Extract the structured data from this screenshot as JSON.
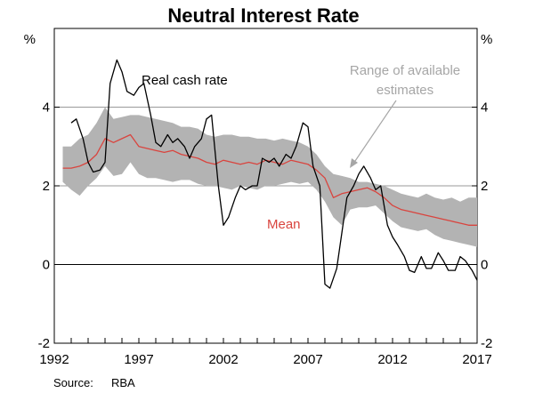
{
  "chart_data": {
    "type": "line",
    "title": "Neutral Interest Rate",
    "xlabel": "",
    "ylabel": "%",
    "ylabel_right": "%",
    "ylim": [
      -2,
      6
    ],
    "xlim": [
      1992,
      2017
    ],
    "y_ticks": [
      -2,
      0,
      2,
      4
    ],
    "x_ticks": [
      1992,
      1997,
      2002,
      2007,
      2012,
      2017
    ],
    "gridlines": [
      2,
      4
    ],
    "zero_line": 0,
    "series": [
      {
        "name": "Real cash rate",
        "color": "#000000",
        "x": [
          1993.0,
          1993.3,
          1993.7,
          1994.0,
          1994.3,
          1994.7,
          1995.0,
          1995.3,
          1995.7,
          1996.0,
          1996.3,
          1996.7,
          1997.0,
          1997.3,
          1997.7,
          1998.0,
          1998.3,
          1998.7,
          1999.0,
          1999.3,
          1999.7,
          2000.0,
          2000.3,
          2000.7,
          2001.0,
          2001.3,
          2001.7,
          2002.0,
          2002.3,
          2002.7,
          2003.0,
          2003.3,
          2003.7,
          2004.0,
          2004.3,
          2004.7,
          2005.0,
          2005.3,
          2005.7,
          2006.0,
          2006.3,
          2006.7,
          2007.0,
          2007.3,
          2007.7,
          2008.0,
          2008.3,
          2008.7,
          2009.0,
          2009.3,
          2009.7,
          2010.0,
          2010.3,
          2010.7,
          2011.0,
          2011.3,
          2011.7,
          2012.0,
          2012.3,
          2012.7,
          2013.0,
          2013.3,
          2013.7,
          2014.0,
          2014.3,
          2014.7,
          2015.0,
          2015.3,
          2015.7,
          2016.0,
          2016.3,
          2016.7,
          2017.0
        ],
        "values": [
          3.6,
          3.7,
          3.2,
          2.6,
          2.35,
          2.4,
          2.6,
          4.6,
          5.2,
          4.9,
          4.4,
          4.3,
          4.5,
          4.6,
          3.8,
          3.1,
          3.0,
          3.3,
          3.1,
          3.2,
          3.0,
          2.7,
          3.0,
          3.2,
          3.7,
          3.8,
          2.0,
          1.0,
          1.2,
          1.7,
          2.0,
          1.9,
          2.0,
          2.0,
          2.7,
          2.6,
          2.7,
          2.5,
          2.8,
          2.7,
          3.0,
          3.6,
          3.5,
          2.5,
          2.0,
          -0.5,
          -0.6,
          -0.1,
          0.8,
          1.7,
          2.0,
          2.3,
          2.5,
          2.2,
          1.9,
          2.0,
          1.0,
          0.7,
          0.5,
          0.2,
          -0.15,
          -0.2,
          0.2,
          -0.1,
          -0.1,
          0.3,
          0.1,
          -0.15,
          -0.15,
          0.2,
          0.1,
          -0.15,
          -0.4
        ]
      },
      {
        "name": "Mean",
        "color": "#d9443e",
        "x": [
          1992.5,
          1993.0,
          1993.5,
          1994.0,
          1994.5,
          1995.0,
          1995.5,
          1996.0,
          1996.5,
          1997.0,
          1997.5,
          1998.0,
          1998.5,
          1999.0,
          1999.5,
          2000.0,
          2000.5,
          2001.0,
          2001.5,
          2002.0,
          2002.5,
          2003.0,
          2003.5,
          2004.0,
          2004.5,
          2005.0,
          2005.5,
          2006.0,
          2006.5,
          2007.0,
          2007.5,
          2008.0,
          2008.5,
          2009.0,
          2009.5,
          2010.0,
          2010.5,
          2011.0,
          2011.5,
          2012.0,
          2012.5,
          2013.0,
          2013.5,
          2014.0,
          2014.5,
          2015.0,
          2015.5,
          2016.0,
          2016.5,
          2017.0
        ],
        "values": [
          2.45,
          2.45,
          2.5,
          2.6,
          2.8,
          3.2,
          3.1,
          3.2,
          3.3,
          3.0,
          2.95,
          2.9,
          2.85,
          2.9,
          2.8,
          2.75,
          2.7,
          2.6,
          2.55,
          2.65,
          2.6,
          2.55,
          2.6,
          2.55,
          2.65,
          2.6,
          2.55,
          2.65,
          2.6,
          2.55,
          2.4,
          2.2,
          1.7,
          1.8,
          1.85,
          1.9,
          1.95,
          1.85,
          1.7,
          1.5,
          1.4,
          1.35,
          1.3,
          1.25,
          1.2,
          1.15,
          1.1,
          1.05,
          1.0,
          1.0
        ]
      }
    ],
    "range": {
      "name": "Range of available estimates",
      "color": "#b3b3b3",
      "x": [
        1992.5,
        1993.0,
        1993.5,
        1994.0,
        1994.5,
        1995.0,
        1995.5,
        1996.0,
        1996.5,
        1997.0,
        1997.5,
        1998.0,
        1998.5,
        1999.0,
        1999.5,
        2000.0,
        2000.5,
        2001.0,
        2001.5,
        2002.0,
        2002.5,
        2003.0,
        2003.5,
        2004.0,
        2004.5,
        2005.0,
        2005.5,
        2006.0,
        2006.5,
        2007.0,
        2007.5,
        2008.0,
        2008.5,
        2009.0,
        2009.5,
        2010.0,
        2010.5,
        2011.0,
        2011.5,
        2012.0,
        2012.5,
        2013.0,
        2013.5,
        2014.0,
        2014.5,
        2015.0,
        2015.5,
        2016.0,
        2016.5,
        2017.0
      ],
      "upper": [
        3.0,
        3.0,
        3.2,
        3.3,
        3.6,
        4.0,
        3.7,
        3.75,
        3.8,
        3.8,
        3.75,
        3.7,
        3.65,
        3.6,
        3.5,
        3.5,
        3.45,
        3.3,
        3.25,
        3.3,
        3.3,
        3.25,
        3.25,
        3.2,
        3.2,
        3.15,
        3.2,
        3.15,
        3.1,
        3.0,
        2.8,
        2.5,
        2.3,
        2.25,
        2.2,
        2.1,
        2.1,
        2.05,
        2.0,
        1.9,
        1.8,
        1.75,
        1.7,
        1.8,
        1.7,
        1.65,
        1.7,
        1.6,
        1.7,
        1.7
      ],
      "lower": [
        2.1,
        1.9,
        1.75,
        2.0,
        2.2,
        2.5,
        2.25,
        2.3,
        2.6,
        2.3,
        2.2,
        2.2,
        2.15,
        2.1,
        2.15,
        2.15,
        2.05,
        2.0,
        2.0,
        1.95,
        1.9,
        2.0,
        1.95,
        1.9,
        2.0,
        2.0,
        2.05,
        2.1,
        2.05,
        2.1,
        1.9,
        1.6,
        1.2,
        1.0,
        1.4,
        1.45,
        1.45,
        1.5,
        1.3,
        1.1,
        0.95,
        0.9,
        0.85,
        0.9,
        0.75,
        0.65,
        0.6,
        0.55,
        0.5,
        0.45
      ]
    },
    "annotations": {
      "real_cash_rate": "Real cash rate",
      "range_line1": "Range of available",
      "range_line2": "estimates",
      "mean": "Mean"
    },
    "source_label": "Source:",
    "source_value": "RBA"
  }
}
